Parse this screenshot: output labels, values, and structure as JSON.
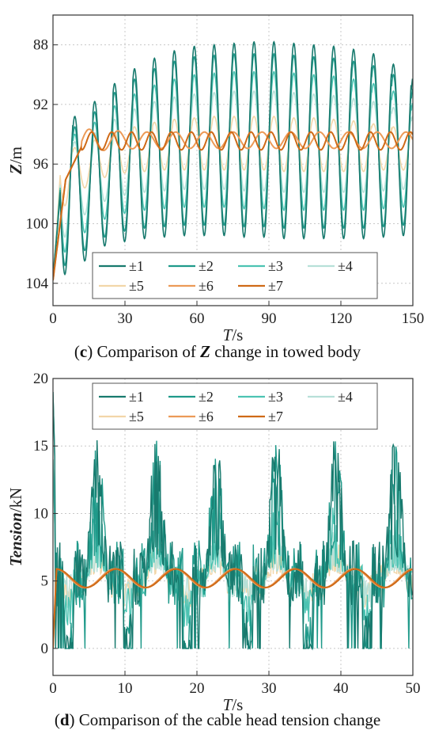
{
  "colors": {
    "s1": "#187a6e",
    "s2": "#1f9a8a",
    "s3": "#4cc3b2",
    "s4": "#b7e0d8",
    "s5": "#f2d6a8",
    "s6": "#ec9a57",
    "s7": "#cf6a17",
    "grid": "#c8c8c8",
    "axis": "#333333"
  },
  "chart_data": [
    {
      "id": "c",
      "type": "line",
      "ylabel_main": "Z",
      "ylabel_unit": "/m",
      "xlabel_main": "T",
      "xlabel_unit": "/s",
      "xlim": [
        0,
        150
      ],
      "ylim": [
        86,
        105.5
      ],
      "y_inverted": true,
      "xticks": [
        0,
        30,
        60,
        90,
        120,
        150
      ],
      "yticks": [
        88,
        92,
        96,
        100,
        104
      ],
      "grid": true,
      "legend_position": "bottom",
      "caption_letter": "c",
      "caption_pre": ") Comparison of ",
      "caption_var": "Z",
      "caption_post": " change in towed body",
      "series": [
        {
          "name": "±1",
          "peak_y": [
            92.3,
            92.8,
            91.8,
            90.6,
            89.6,
            88.9,
            88.4,
            88.1,
            88.0,
            87.9,
            87.8,
            87.8,
            87.9,
            88.0,
            88.1,
            88.3,
            88.6,
            89.3,
            90.1
          ],
          "trough_y": [
            103.4,
            102.5,
            101.5,
            101.2,
            101.0,
            100.9,
            100.8,
            100.8,
            100.8,
            100.9,
            100.9,
            101.0,
            101.0,
            101.0,
            101.0,
            101.0,
            100.9,
            100.8,
            100.6
          ]
        },
        {
          "name": "±2",
          "peak_y": [
            92.6,
            93.5,
            92.5,
            91.2,
            90.3,
            89.6,
            89.1,
            88.8,
            88.7,
            88.6,
            88.6,
            88.6,
            88.7,
            88.8,
            88.9,
            89.1,
            89.4,
            90.0,
            90.8
          ],
          "trough_y": [
            102.8,
            101.8,
            100.9,
            100.5,
            100.3,
            100.2,
            100.1,
            100.1,
            100.1,
            100.2,
            100.2,
            100.3,
            100.3,
            100.3,
            100.3,
            100.3,
            100.2,
            100.1,
            99.9
          ]
        },
        {
          "name": "±3",
          "peak_y": [
            93.2,
            94.0,
            93.2,
            92.1,
            91.3,
            90.7,
            90.3,
            90.0,
            89.9,
            89.8,
            89.8,
            89.8,
            89.9,
            90.0,
            90.1,
            90.3,
            90.6,
            91.1,
            91.8
          ],
          "trough_y": [
            101.9,
            100.6,
            99.7,
            99.3,
            99.1,
            99.0,
            98.9,
            98.9,
            98.9,
            99.0,
            99.0,
            99.1,
            99.1,
            99.1,
            99.1,
            99.1,
            99.0,
            98.9,
            98.7
          ]
        },
        {
          "name": "±4",
          "peak_y": [
            93.8,
            94.5,
            93.9,
            93.0,
            92.3,
            91.8,
            91.5,
            91.3,
            91.2,
            91.1,
            91.1,
            91.1,
            91.2,
            91.3,
            91.4,
            91.6,
            91.8,
            92.2,
            92.7
          ],
          "trough_y": [
            100.9,
            99.4,
            98.5,
            98.1,
            97.9,
            97.8,
            97.7,
            97.7,
            97.7,
            97.8,
            97.8,
            97.9,
            97.9,
            97.9,
            97.9,
            97.9,
            97.8,
            97.7,
            97.5
          ]
        },
        {
          "name": "±5",
          "peak_y": [
            94.6,
            94.9,
            94.4,
            93.9,
            93.5,
            93.2,
            93.0,
            92.9,
            92.8,
            92.8,
            92.8,
            92.8,
            92.9,
            92.9,
            93.0,
            93.1,
            93.3,
            93.5,
            93.8
          ],
          "trough_y": [
            98.8,
            97.6,
            96.9,
            96.6,
            96.5,
            96.4,
            96.4,
            96.4,
            96.4,
            96.4,
            96.4,
            96.5,
            96.5,
            96.5,
            96.5,
            96.5,
            96.4,
            96.4,
            96.3
          ]
        },
        {
          "name": "±6",
          "period": 12,
          "amplitude": 0.55,
          "mean": 94.4,
          "rise_time": 12
        },
        {
          "name": "±7",
          "period": 8.3,
          "amplitude": 0.6,
          "mean": 94.45,
          "rise_time": 12
        }
      ]
    },
    {
      "id": "d",
      "type": "line",
      "ylabel_main": "Tension",
      "ylabel_unit": "/kN",
      "xlabel_main": "T",
      "xlabel_unit": "/s",
      "xlim": [
        0,
        50
      ],
      "ylim": [
        -2,
        20
      ],
      "xticks": [
        0,
        10,
        20,
        30,
        40,
        50
      ],
      "yticks": [
        0,
        5,
        10,
        15,
        20
      ],
      "grid": true,
      "legend_position": "top",
      "caption_letter": "d",
      "caption_pre": ") Comparison of the cable head tension change",
      "caption_var": "",
      "caption_post": "",
      "series": [
        {
          "name": "±1",
          "burst_period": 8.3,
          "max": 16
        },
        {
          "name": "±2",
          "burst_period": 8.3,
          "max": 15.5
        },
        {
          "name": "±3",
          "burst_period": 8.3,
          "max": 11
        },
        {
          "name": "±4",
          "burst_period": 8.3,
          "max": 9
        },
        {
          "name": "±5",
          "burst_period": 8.3,
          "max": 8
        },
        {
          "name": "±6",
          "period": 8.3,
          "amplitude": 0.7,
          "mean": 5.2
        },
        {
          "name": "±7",
          "period": 8.3,
          "amplitude": 0.68,
          "mean": 5.2
        }
      ]
    }
  ]
}
